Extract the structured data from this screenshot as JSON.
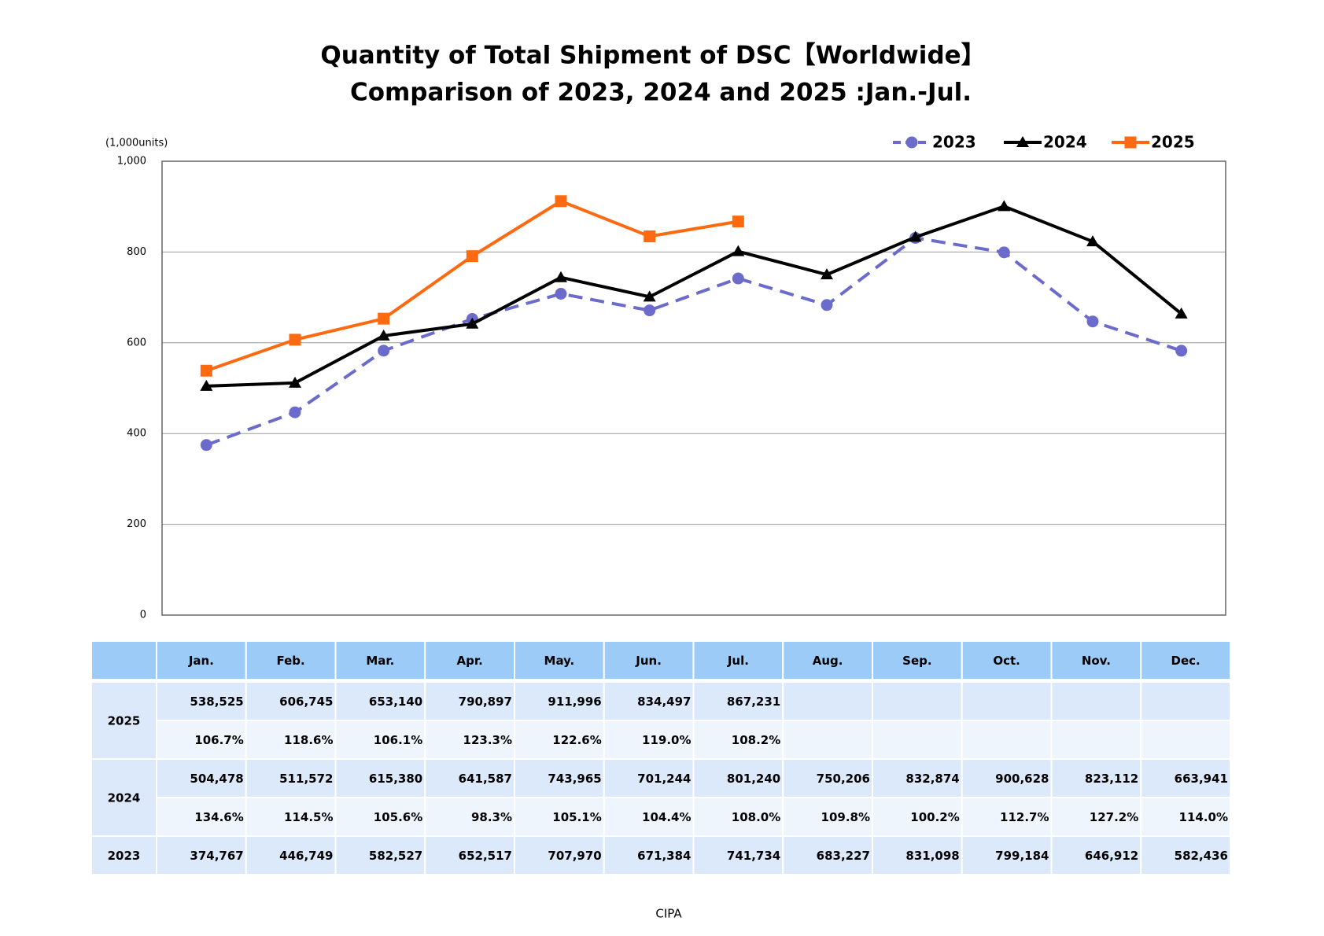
{
  "chart_data": {
    "type": "line",
    "title": "Quantity of Total Shipment of DSC【Worldwide】",
    "subtitle": "Comparison of 2023, 2024 and 2025 :Jan.-Jul.",
    "y_label": "(1,000units)",
    "categories": [
      "Jan.",
      "Feb.",
      "Mar.",
      "Apr.",
      "May.",
      "Jun.",
      "Jul.",
      "Aug.",
      "Sep.",
      "Oct.",
      "Nov.",
      "Dec."
    ],
    "ylim": [
      0,
      1000
    ],
    "yticks": [
      0,
      200,
      400,
      600,
      800,
      {
        "value": 1000,
        "label": "1,000"
      }
    ],
    "grid": true,
    "legend": "top-right",
    "series": [
      {
        "name": "2025",
        "color": "#ff6a10",
        "marker": "square",
        "dashed": false,
        "values": [
          538.525,
          606.745,
          653.14,
          790.897,
          911.996,
          834.497,
          867.231,
          null,
          null,
          null,
          null,
          null
        ],
        "value_labels": [
          "538,525",
          "606,745",
          "653,140",
          "790,897",
          "911,996",
          "834,497",
          "867,231",
          null,
          null,
          null,
          null,
          null
        ],
        "ratio_labels": [
          "106.7%",
          "118.6%",
          "106.1%",
          "123.3%",
          "122.6%",
          "119.0%",
          "108.2%"
        ]
      },
      {
        "name": "2024",
        "color": "#000000",
        "marker": "triangle",
        "dashed": false,
        "values": [
          504.478,
          511.572,
          615.38,
          641.587,
          743.965,
          701.244,
          801.24,
          750.206,
          832.874,
          900.628,
          823.112,
          663.941
        ],
        "value_labels": [
          "504,478",
          "511,572",
          "615,380",
          "641,587",
          "743,965",
          "701,244",
          "801,240",
          "750,206",
          "832,874",
          "900,628",
          "823,112",
          "663,941"
        ],
        "ratio_labels": [
          "134.6%",
          "114.5%",
          "105.6%",
          "98.3%",
          "105.1%",
          "104.4%",
          "108.0%",
          "109.8%",
          "100.2%",
          "112.7%",
          "127.2%",
          "114.0%"
        ]
      },
      {
        "name": "2023",
        "color": "#6b6bcc",
        "marker": "circle",
        "dashed": true,
        "values": [
          374.767,
          446.749,
          582.527,
          652.517,
          707.97,
          671.384,
          741.734,
          683.227,
          831.098,
          799.184,
          646.912,
          582.436
        ],
        "value_labels": [
          "374,767",
          "446,749",
          "582,527",
          "652,517",
          "707,970",
          "671,384",
          "741,734",
          "683,227",
          "831,098",
          "799,184",
          "646,912",
          "582,436"
        ]
      }
    ],
    "source": "CIPA"
  }
}
